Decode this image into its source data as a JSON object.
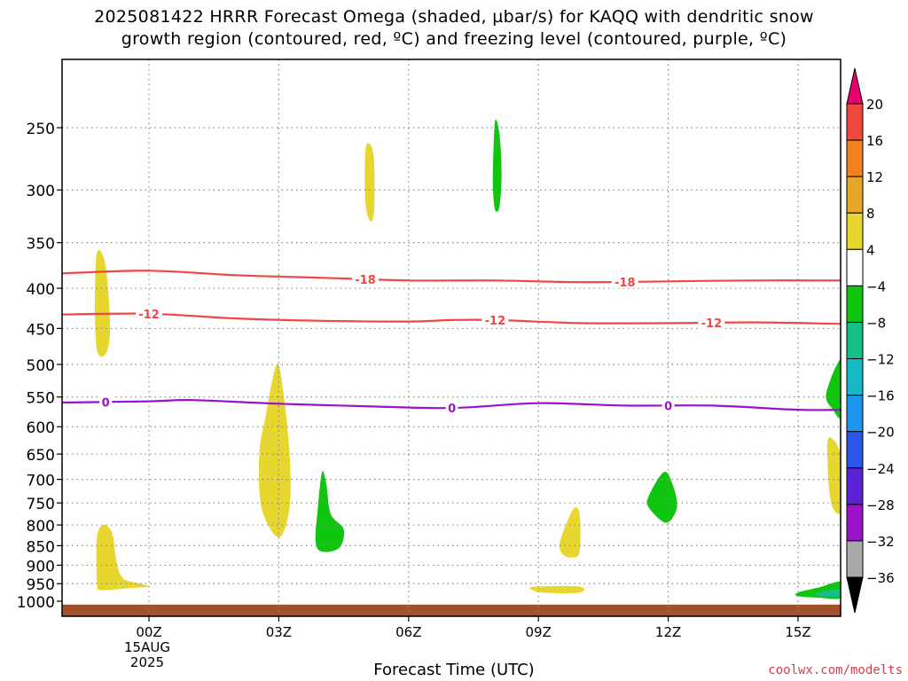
{
  "title": {
    "line1": "2025081422 HRRR Forecast Omega (shaded, µbar/s) for KAQQ with dendritic snow",
    "line2": "growth region (contoured, red, ºC) and freezing level (contoured, purple, ºC)"
  },
  "footer": {
    "credit": "coolwx.com/modelts"
  },
  "colors": {
    "dgz_contour": "#f04646",
    "freezing_contour": "#9a12c9",
    "ground": "#a0522d",
    "grid": "#888888"
  },
  "chart_data": {
    "type": "heatmap",
    "xlabel": "Forecast Time (UTC)",
    "x_ticks": [
      {
        "label": "00Z",
        "sub": [
          "15AUG",
          "2025"
        ],
        "hour": 0
      },
      {
        "label": "03Z",
        "hour": 3
      },
      {
        "label": "06Z",
        "hour": 6
      },
      {
        "label": "09Z",
        "hour": 9
      },
      {
        "label": "12Z",
        "hour": 12
      },
      {
        "label": "15Z",
        "hour": 15
      }
    ],
    "x_range_hours": [
      -2,
      16
    ],
    "y_axis": "pressure (hPa)",
    "y_ticks": [
      250,
      300,
      350,
      400,
      450,
      500,
      550,
      600,
      650,
      700,
      750,
      800,
      850,
      900,
      950,
      1000
    ],
    "colorbar": {
      "levels": [
        20,
        16,
        12,
        8,
        4,
        -4,
        -8,
        -12,
        -16,
        -20,
        -24,
        -28,
        -32,
        -36
      ],
      "colors": [
        "#e8006e",
        "#f0483e",
        "#f0821e",
        "#e6a626",
        "#e6d62e",
        "#ffffff",
        "#10c510",
        "#14bf88",
        "#16b9c5",
        "#1e95f0",
        "#2c56e8",
        "#5a22d4",
        "#9a12c9",
        "#a8a8a8",
        "#000000"
      ]
    },
    "contours": [
      {
        "label": "-18",
        "kind": "dgz",
        "points": [
          [
            -2,
            383
          ],
          [
            0,
            380
          ],
          [
            2,
            385
          ],
          [
            4,
            388
          ],
          [
            6,
            391
          ],
          [
            8,
            391
          ],
          [
            10,
            393
          ],
          [
            12,
            392
          ],
          [
            14,
            391
          ],
          [
            16,
            391
          ]
        ],
        "label_hours": [
          5,
          11
        ]
      },
      {
        "label": "-12",
        "kind": "dgz",
        "points": [
          [
            -2,
            432
          ],
          [
            0,
            431
          ],
          [
            2,
            437
          ],
          [
            4,
            440
          ],
          [
            6,
            441
          ],
          [
            7,
            439
          ],
          [
            8,
            439
          ],
          [
            10,
            443
          ],
          [
            12,
            443
          ],
          [
            14,
            442
          ],
          [
            16,
            444
          ]
        ],
        "label_hours": [
          0,
          8,
          13
        ]
      },
      {
        "label": "0",
        "kind": "freezing",
        "points": [
          [
            -2,
            559
          ],
          [
            0,
            557
          ],
          [
            1,
            555
          ],
          [
            3,
            561
          ],
          [
            5,
            565
          ],
          [
            7,
            568
          ],
          [
            9,
            560
          ],
          [
            11,
            564
          ],
          [
            13,
            564
          ],
          [
            15,
            571
          ],
          [
            16,
            571
          ]
        ],
        "label_hours": [
          -1,
          7,
          12
        ]
      }
    ],
    "blobs": [
      {
        "value": 6,
        "pts": [
          [
            -1.2,
            360
          ],
          [
            -1.0,
            375
          ],
          [
            -0.9,
            450
          ],
          [
            -1.0,
            485
          ],
          [
            -1.2,
            480
          ],
          [
            -1.25,
            420
          ]
        ]
      },
      {
        "value": 6,
        "pts": [
          [
            5.0,
            268
          ],
          [
            5.1,
            262
          ],
          [
            5.2,
            275
          ],
          [
            5.2,
            320
          ],
          [
            5.1,
            328
          ],
          [
            5.0,
            310
          ]
        ]
      },
      {
        "value": -5,
        "pts": [
          [
            7.95,
            278
          ],
          [
            8.0,
            245
          ],
          [
            8.1,
            255
          ],
          [
            8.15,
            285
          ],
          [
            8.1,
            315
          ],
          [
            8.0,
            318
          ],
          [
            7.95,
            300
          ]
        ]
      },
      {
        "value": 6,
        "pts": [
          [
            2.55,
            650
          ],
          [
            2.7,
            580
          ],
          [
            2.95,
            500
          ],
          [
            3.1,
            540
          ],
          [
            3.25,
            650
          ],
          [
            3.25,
            760
          ],
          [
            3.0,
            830
          ],
          [
            2.6,
            760
          ]
        ]
      },
      {
        "value": -5,
        "pts": [
          [
            3.9,
            765
          ],
          [
            4.0,
            685
          ],
          [
            4.1,
            710
          ],
          [
            4.2,
            775
          ],
          [
            4.5,
            810
          ],
          [
            4.4,
            855
          ],
          [
            4.0,
            865
          ],
          [
            3.85,
            840
          ]
        ]
      },
      {
        "value": 6,
        "pts": [
          [
            9.5,
            840
          ],
          [
            9.8,
            765
          ],
          [
            9.95,
            775
          ],
          [
            9.95,
            865
          ],
          [
            9.75,
            880
          ],
          [
            9.55,
            870
          ]
        ]
      },
      {
        "value": -5,
        "pts": [
          [
            11.55,
            735
          ],
          [
            11.9,
            685
          ],
          [
            12.1,
            710
          ],
          [
            12.2,
            760
          ],
          [
            11.95,
            795
          ],
          [
            11.55,
            760
          ]
        ]
      },
      {
        "value": 6,
        "pts": [
          [
            -1.2,
            830
          ],
          [
            -1.05,
            800
          ],
          [
            -0.85,
            820
          ],
          [
            -0.75,
            890
          ],
          [
            -0.6,
            935
          ],
          [
            -0.2,
            950
          ],
          [
            0.0,
            958
          ],
          [
            -0.5,
            963
          ],
          [
            -1.1,
            968
          ],
          [
            -1.2,
            950
          ]
        ]
      },
      {
        "value": 6,
        "pts": [
          [
            8.8,
            963
          ],
          [
            9.0,
            958
          ],
          [
            9.95,
            958
          ],
          [
            9.95,
            975
          ],
          [
            9.1,
            975
          ]
        ]
      },
      {
        "value": 6,
        "pts": [
          [
            15.7,
            620
          ],
          [
            16.0,
            655
          ],
          [
            16.0,
            765
          ],
          [
            15.8,
            760
          ],
          [
            15.7,
            700
          ]
        ]
      },
      {
        "value": -5,
        "pts": [
          [
            15.65,
            545
          ],
          [
            16.0,
            493
          ],
          [
            16.0,
            580
          ],
          [
            15.8,
            570
          ]
        ]
      },
      {
        "value": -5,
        "pts": [
          [
            15.0,
            975
          ],
          [
            15.5,
            960
          ],
          [
            16.0,
            945
          ],
          [
            16.0,
            990
          ],
          [
            15.5,
            990
          ],
          [
            15.0,
            985
          ]
        ]
      },
      {
        "value": -9,
        "pts": [
          [
            15.45,
            975
          ],
          [
            16.0,
            965
          ],
          [
            16.0,
            985
          ],
          [
            15.5,
            985
          ]
        ]
      }
    ],
    "ground_top_hpa": 1010
  }
}
